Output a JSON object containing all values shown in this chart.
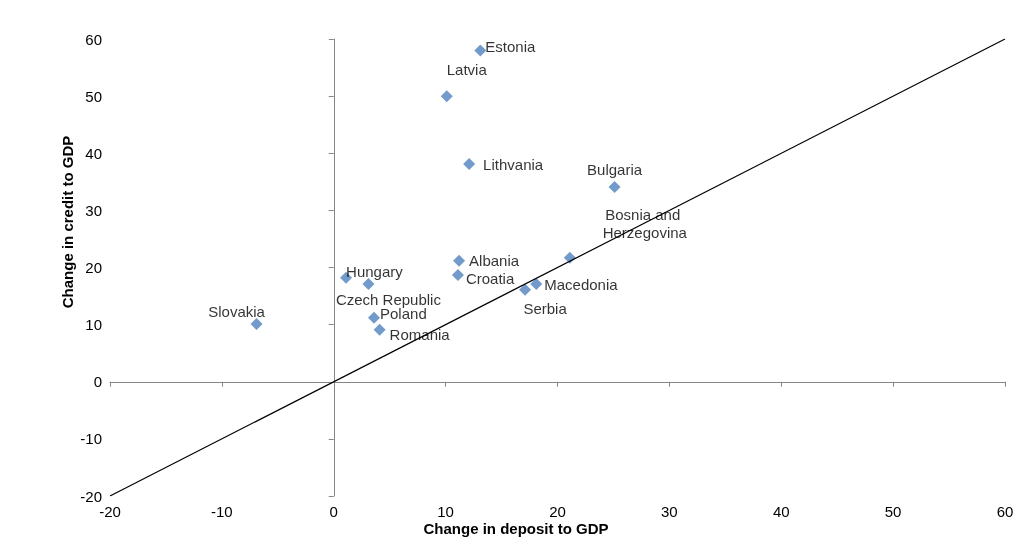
{
  "chart_data": {
    "type": "scatter",
    "xlabel": "Change in deposit to GDP",
    "ylabel": "Change in credit to GDP",
    "xlim": [
      -20,
      60
    ],
    "xticks": [
      -20,
      -10,
      0,
      10,
      20,
      30,
      40,
      50,
      60
    ],
    "ylim": [
      -20,
      60
    ],
    "yticks": [
      -20,
      -10,
      0,
      10,
      20,
      30,
      40,
      50,
      60
    ],
    "marker": "diamond",
    "series": [
      {
        "color": "#4f81bd",
        "x": [
          13.1,
          10.1,
          12.1,
          25.1,
          21.1,
          11.2,
          11.1,
          1.1,
          3.1,
          18.1,
          17.1,
          -6.9,
          3.6,
          4.1
        ],
        "values": [
          58,
          50,
          38.1,
          34.1,
          21.7,
          21.2,
          18.7,
          18.2,
          17.1,
          17.1,
          16.1,
          10.1,
          11.2,
          9.1
        ]
      },
      {
        "type": "line",
        "marker": "none",
        "color": "#000000",
        "x": [
          -20,
          60
        ],
        "values": [
          -20,
          60
        ]
      }
    ],
    "annotations": [
      {
        "text": "Estonia",
        "x": 13.1,
        "y": 58
      },
      {
        "text": "Latvia",
        "x": 10.1,
        "y": 50
      },
      {
        "text": "Lithvania",
        "x": 12.1,
        "y": 38.1
      },
      {
        "text": "Bulgaria",
        "x": 25.1,
        "y": 34.1
      },
      {
        "text": "Bosnia and Herzegovina",
        "x": 21.1,
        "y": 21.7
      },
      {
        "text": "Albania",
        "x": 11.2,
        "y": 21.2
      },
      {
        "text": "Croatia",
        "x": 11.1,
        "y": 18.7
      },
      {
        "text": "Hungary",
        "x": 1.1,
        "y": 18.2
      },
      {
        "text": "Czech Republic",
        "x": 3.1,
        "y": 17.1
      },
      {
        "text": "Macedonia",
        "x": 18.1,
        "y": 17.1
      },
      {
        "text": "Serbia",
        "x": 17.1,
        "y": 16.1
      },
      {
        "text": "Slovakia",
        "x": -6.9,
        "y": 10.1
      },
      {
        "text": "Poland",
        "x": 3.6,
        "y": 11.2
      },
      {
        "text": "Romania",
        "x": 4.1,
        "y": 9.1
      }
    ]
  }
}
